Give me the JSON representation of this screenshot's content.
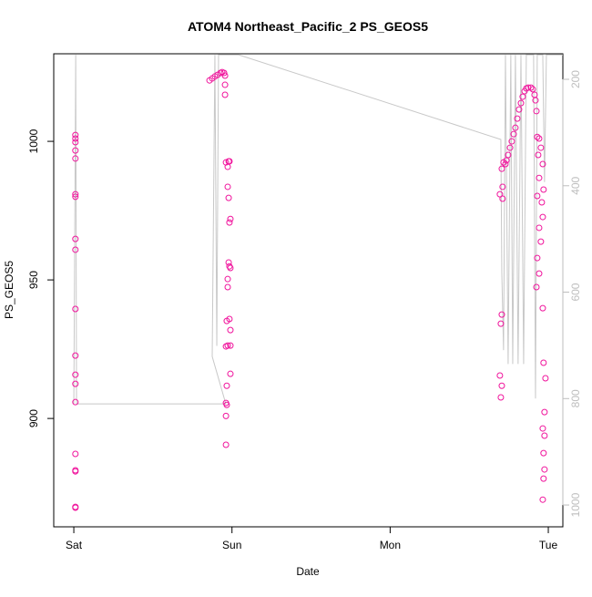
{
  "chart_data": {
    "type": "scatter",
    "title": "ATOM4 Northeast_Pacific_2 PS_GEOS5",
    "xlabel": "Date",
    "ylabel": "PS_GEOS5",
    "xlim": [
      -0.127,
      3.092
    ],
    "ylim": [
      860.9,
      1031.6
    ],
    "y2lim": [
      1041,
      152
    ],
    "xticks": [
      {
        "value": 0,
        "label": "Sat"
      },
      {
        "value": 1,
        "label": "Sun"
      },
      {
        "value": 2,
        "label": "Mon"
      },
      {
        "value": 3,
        "label": "Tue"
      }
    ],
    "yticks": [
      900,
      950,
      1000
    ],
    "y2ticks": [
      200,
      400,
      600,
      800,
      1000
    ],
    "y2_color": "#bebebe",
    "series": [
      {
        "type": "scatter",
        "color": "#f0149c",
        "x": [
          0.01,
          0.01,
          0.01,
          0.01,
          0.01,
          0.01,
          0.01,
          0.01,
          0.01,
          0.01,
          0.01,
          0.01,
          0.01,
          0.01,
          0.01,
          0.01,
          0.01,
          0.01,
          0.01,
          0.858,
          0.875,
          0.892,
          0.909,
          0.927,
          0.938,
          0.95,
          0.956,
          0.956,
          0.956,
          0.962,
          0.973,
          0.979,
          0.984,
          0.973,
          0.979,
          0.99,
          0.984,
          0.979,
          0.984,
          0.99,
          0.973,
          0.973,
          0.967,
          0.984,
          0.99,
          0.973,
          0.99,
          0.962,
          0.99,
          0.967,
          0.962,
          0.967,
          0.962,
          0.962,
          2.717,
          2.729,
          2.735,
          2.746,
          2.758,
          2.769,
          2.781,
          2.792,
          2.804,
          2.815,
          2.827,
          2.838,
          2.85,
          2.861,
          2.873,
          2.89,
          2.902,
          2.913,
          2.919,
          2.706,
          2.694,
          2.711,
          2.711,
          2.706,
          2.7,
          2.694,
          2.706,
          2.7,
          2.925,
          2.93,
          2.942,
          2.953,
          2.936,
          2.965,
          2.942,
          2.97,
          2.93,
          2.959,
          2.965,
          2.942,
          2.953,
          2.93,
          2.942,
          2.925,
          2.965,
          2.97,
          2.982,
          2.976,
          2.965,
          2.976,
          2.97,
          2.976,
          2.97,
          2.965
        ],
        "values": [
          1002.3,
          1001,
          999.7,
          996.7,
          993.8,
          980.9,
          980,
          964.8,
          960.9,
          939.5,
          922.7,
          915.8,
          912.5,
          905.9,
          887.2,
          881.3,
          880.9,
          868.1,
          867.8,
          1022,
          1022.7,
          1023.4,
          1024,
          1024.7,
          1025,
          1024.7,
          1023.7,
          1020.4,
          1016.8,
          992.4,
          990.8,
          992.8,
          992.8,
          983.6,
          979.6,
          972,
          970.7,
          956.3,
          954.9,
          954.3,
          950.3,
          947.4,
          935.2,
          935.9,
          931.9,
          926.3,
          926.3,
          926,
          916.1,
          911.8,
          905.6,
          904.9,
          900.9,
          890.5,
          992.4,
          991.8,
          993.1,
          995.1,
          997.7,
          1000,
          1002.6,
          1004.9,
          1008.2,
          1011.5,
          1013.8,
          1016.1,
          1018.1,
          1019.1,
          1019.4,
          1019.4,
          1018.8,
          1016.8,
          1014.8,
          990.1,
          980.9,
          983.6,
          979.3,
          937.5,
          934.2,
          915.5,
          911.8,
          907.6,
          1010.9,
          1001.6,
          1001,
          997.7,
          995.1,
          991.8,
          986.8,
          982.6,
          980.3,
          978,
          972.7,
          968.8,
          963.8,
          957.9,
          952.3,
          947.4,
          939.8,
          920.1,
          914.5,
          902.3,
          896.4,
          893.8,
          887.5,
          881.6,
          878.3,
          870.7
        ]
      },
      {
        "type": "line",
        "axis": "y2",
        "color": "#c8c8c8",
        "x": [
          0,
          0.012,
          0.017,
          0.961,
          0.875,
          0.892,
          0.904,
          0.915,
          1.042,
          2.7,
          2.706,
          2.717,
          2.729,
          2.746,
          2.763,
          2.775,
          2.792,
          2.809,
          2.827,
          2.844,
          2.861,
          2.907,
          2.919,
          2.93,
          2.965,
          2.976,
          2.988,
          3.092
        ],
        "values": [
          810,
          154,
          810,
          810,
          721,
          154,
          701,
          154,
          154,
          313,
          564,
          709,
          154,
          735,
          154,
          735,
          154,
          735,
          154,
          735,
          154,
          154,
          800,
          154,
          154,
          393,
          154,
          154
        ]
      }
    ]
  }
}
